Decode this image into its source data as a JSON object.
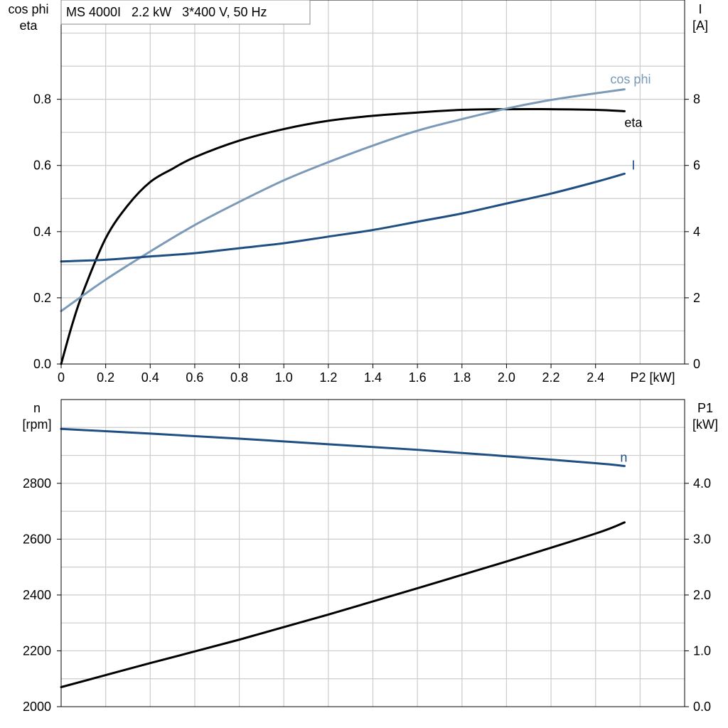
{
  "colors": {
    "eta": "#000000",
    "cos_phi": "#7a9ab8",
    "I": "#1e4e82",
    "n": "#1e4e82",
    "P1": "#000000",
    "grid": "#cccccc"
  },
  "chart_data": [
    {
      "type": "line",
      "title": "MS 4000I   2.2 kW   3*400 V, 50 Hz",
      "xlabel": "P2 [kW]",
      "ylabel_left": [
        "cos phi",
        "eta"
      ],
      "ylabel_right": [
        "I",
        "[A]"
      ],
      "xlim": [
        0,
        2.8
      ],
      "ylim_left": [
        0,
        1.1
      ],
      "ylim_right": [
        0,
        11
      ],
      "x_ticks": [
        "0",
        "0.2",
        "0.4",
        "0.6",
        "0.8",
        "1.0",
        "1.2",
        "1.4",
        "1.6",
        "1.8",
        "2.0",
        "2.2",
        "2.4"
      ],
      "y_ticks_left": [
        "0.0",
        "0.2",
        "0.4",
        "0.6",
        "0.8"
      ],
      "y_ticks_right": [
        "0",
        "2",
        "4",
        "6",
        "8"
      ],
      "grid": true,
      "series": [
        {
          "name": "eta",
          "axis": "left",
          "curve_label": "eta",
          "x": [
            0,
            0.05,
            0.1,
            0.2,
            0.3,
            0.4,
            0.5,
            0.6,
            0.8,
            1.0,
            1.2,
            1.4,
            1.6,
            1.8,
            2.0,
            2.2,
            2.4,
            2.53
          ],
          "y": [
            0,
            0.12,
            0.22,
            0.38,
            0.48,
            0.55,
            0.59,
            0.625,
            0.675,
            0.71,
            0.735,
            0.75,
            0.76,
            0.768,
            0.77,
            0.77,
            0.768,
            0.764
          ]
        },
        {
          "name": "cos phi",
          "axis": "left",
          "curve_label": "cos phi",
          "x": [
            0,
            0.2,
            0.4,
            0.6,
            0.8,
            1.0,
            1.2,
            1.4,
            1.6,
            1.8,
            2.0,
            2.2,
            2.4,
            2.53
          ],
          "y": [
            0.16,
            0.255,
            0.34,
            0.42,
            0.49,
            0.555,
            0.61,
            0.66,
            0.705,
            0.74,
            0.772,
            0.798,
            0.818,
            0.83
          ]
        },
        {
          "name": "I",
          "axis": "right",
          "curve_label": "I",
          "x": [
            0,
            0.2,
            0.4,
            0.6,
            0.8,
            1.0,
            1.2,
            1.4,
            1.6,
            1.8,
            2.0,
            2.2,
            2.4,
            2.53
          ],
          "y": [
            3.1,
            3.15,
            3.25,
            3.35,
            3.5,
            3.65,
            3.85,
            4.05,
            4.3,
            4.55,
            4.85,
            5.15,
            5.5,
            5.75
          ]
        }
      ]
    },
    {
      "type": "line",
      "xlabel": "",
      "ylabel_left": [
        "n",
        "[rpm]"
      ],
      "ylabel_right": [
        "P1",
        "[kW]"
      ],
      "xlim": [
        0,
        2.8
      ],
      "ylim_left": [
        2000,
        3100
      ],
      "ylim_right": [
        0,
        5.5
      ],
      "y_ticks_left": [
        "2000",
        "2200",
        "2400",
        "2600",
        "2800"
      ],
      "y_ticks_right": [
        "0.0",
        "1.0",
        "2.0",
        "3.0",
        "4.0"
      ],
      "grid": true,
      "series": [
        {
          "name": "n",
          "axis": "left",
          "curve_label": "n",
          "x": [
            0,
            0.4,
            0.8,
            1.2,
            1.6,
            2.0,
            2.4,
            2.53
          ],
          "y": [
            2995,
            2978,
            2960,
            2940,
            2920,
            2897,
            2872,
            2862
          ]
        },
        {
          "name": "P1",
          "axis": "right",
          "curve_label": "",
          "x": [
            0,
            0.4,
            0.8,
            1.2,
            1.6,
            2.0,
            2.4,
            2.53
          ],
          "y": [
            0.35,
            0.78,
            1.2,
            1.65,
            2.12,
            2.6,
            3.1,
            3.3
          ]
        }
      ]
    }
  ]
}
